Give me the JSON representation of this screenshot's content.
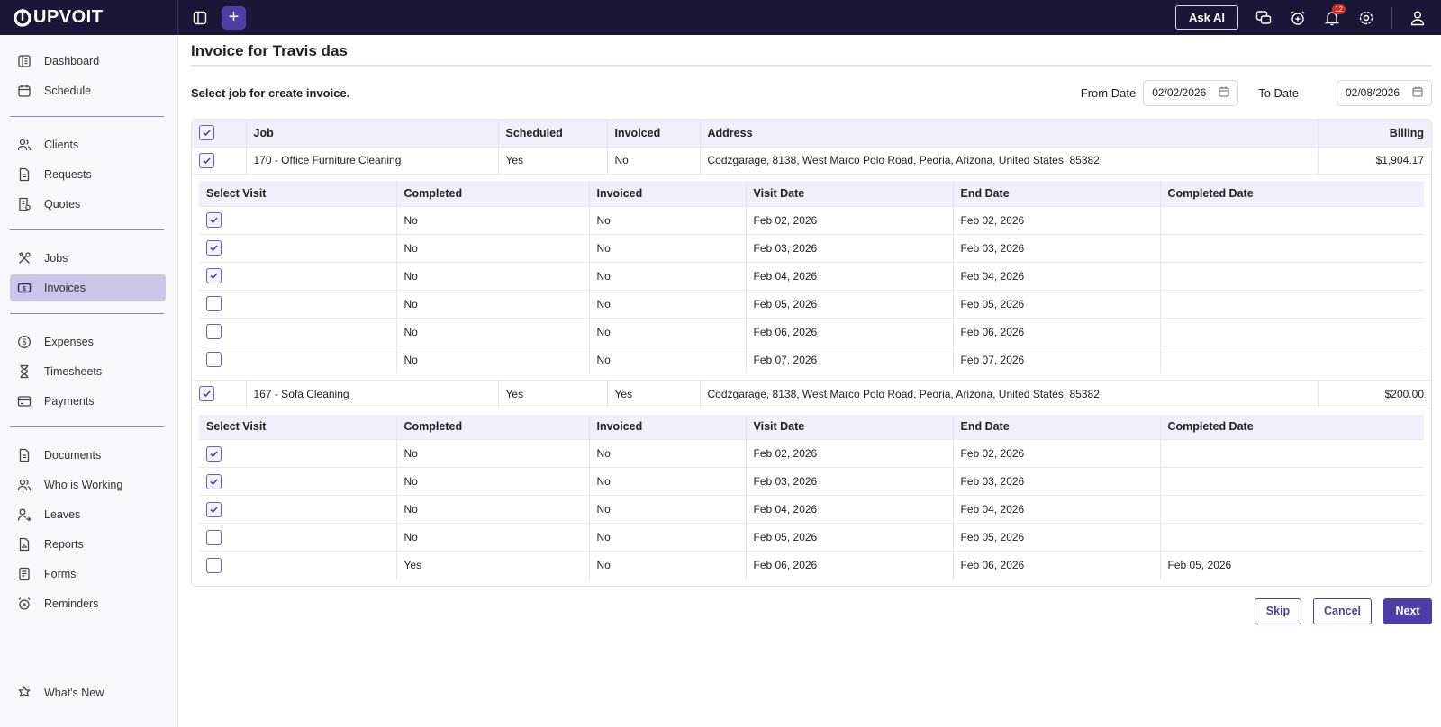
{
  "app": {
    "brand": "UPVOIT"
  },
  "topbar": {
    "ask_ai": "Ask AI",
    "notification_count": "12",
    "icons": [
      "sidebar-toggle-icon",
      "plus-icon",
      "chat-icon",
      "alarm-icon",
      "bell-icon",
      "gear-icon",
      "user-icon"
    ]
  },
  "sidebar": {
    "groups": [
      [
        {
          "label": "Dashboard",
          "icon": "dashboard-icon"
        },
        {
          "label": "Schedule",
          "icon": "calendar-icon"
        }
      ],
      [
        {
          "label": "Clients",
          "icon": "users-icon"
        },
        {
          "label": "Requests",
          "icon": "document-icon"
        },
        {
          "label": "Quotes",
          "icon": "quote-icon"
        }
      ],
      [
        {
          "label": "Jobs",
          "icon": "tools-icon"
        },
        {
          "label": "Invoices",
          "icon": "invoice-icon",
          "active": true
        }
      ],
      [
        {
          "label": "Expenses",
          "icon": "dollar-icon"
        },
        {
          "label": "Timesheets",
          "icon": "hourglass-icon"
        },
        {
          "label": "Payments",
          "icon": "card-icon"
        }
      ],
      [
        {
          "label": "Documents",
          "icon": "file-icon"
        },
        {
          "label": "Who is Working",
          "icon": "team-icon"
        },
        {
          "label": "Leaves",
          "icon": "user-leave-icon"
        },
        {
          "label": "Reports",
          "icon": "report-icon"
        },
        {
          "label": "Forms",
          "icon": "form-icon"
        },
        {
          "label": "Reminders",
          "icon": "alarm-icon"
        }
      ]
    ],
    "footer": {
      "label": "What's New",
      "icon": "star-icon"
    }
  },
  "page": {
    "title": "Invoice for Travis das",
    "subtitle": "Select job for create invoice.",
    "from_label": "From Date",
    "from_value": "02/02/2026",
    "to_label": "To Date",
    "to_value": "02/08/2026"
  },
  "job_headers": [
    "Job",
    "Scheduled",
    "Invoiced",
    "Address",
    "Billing"
  ],
  "visit_headers": [
    "Select Visit",
    "Completed",
    "Invoiced",
    "Visit Date",
    "End Date",
    "Completed Date"
  ],
  "jobs": [
    {
      "checked": true,
      "job": "170 - Office Furniture Cleaning",
      "scheduled": "Yes",
      "invoiced": "No",
      "address": "Codzgarage, 8138, West Marco Polo Road, Peoria, Arizona, United States, 85382",
      "billing": "$1,904.17",
      "visits": [
        {
          "checked": true,
          "completed": "No",
          "invoiced": "No",
          "visit_date": "Feb 02, 2026",
          "end_date": "Feb 02, 2026",
          "completed_date": ""
        },
        {
          "checked": true,
          "completed": "No",
          "invoiced": "No",
          "visit_date": "Feb 03, 2026",
          "end_date": "Feb 03, 2026",
          "completed_date": ""
        },
        {
          "checked": true,
          "completed": "No",
          "invoiced": "No",
          "visit_date": "Feb 04, 2026",
          "end_date": "Feb 04, 2026",
          "completed_date": ""
        },
        {
          "checked": false,
          "completed": "No",
          "invoiced": "No",
          "visit_date": "Feb 05, 2026",
          "end_date": "Feb 05, 2026",
          "completed_date": ""
        },
        {
          "checked": false,
          "completed": "No",
          "invoiced": "No",
          "visit_date": "Feb 06, 2026",
          "end_date": "Feb 06, 2026",
          "completed_date": ""
        },
        {
          "checked": false,
          "completed": "No",
          "invoiced": "No",
          "visit_date": "Feb 07, 2026",
          "end_date": "Feb 07, 2026",
          "completed_date": ""
        }
      ]
    },
    {
      "checked": true,
      "job": "167 - Sofa Cleaning",
      "scheduled": "Yes",
      "invoiced": "Yes",
      "address": "Codzgarage, 8138, West Marco Polo Road, Peoria, Arizona, United States, 85382",
      "billing": "$200.00",
      "visits": [
        {
          "checked": true,
          "completed": "No",
          "invoiced": "No",
          "visit_date": "Feb 02, 2026",
          "end_date": "Feb 02, 2026",
          "completed_date": ""
        },
        {
          "checked": true,
          "completed": "No",
          "invoiced": "No",
          "visit_date": "Feb 03, 2026",
          "end_date": "Feb 03, 2026",
          "completed_date": ""
        },
        {
          "checked": true,
          "completed": "No",
          "invoiced": "No",
          "visit_date": "Feb 04, 2026",
          "end_date": "Feb 04, 2026",
          "completed_date": ""
        },
        {
          "checked": false,
          "completed": "No",
          "invoiced": "No",
          "visit_date": "Feb 05, 2026",
          "end_date": "Feb 05, 2026",
          "completed_date": ""
        },
        {
          "checked": false,
          "completed": "Yes",
          "invoiced": "No",
          "visit_date": "Feb 06, 2026",
          "end_date": "Feb 06, 2026",
          "completed_date": "Feb 05, 2026"
        }
      ]
    }
  ],
  "actions": {
    "skip": "Skip",
    "cancel": "Cancel",
    "next": "Next"
  },
  "colors": {
    "topbar": "#1b1635",
    "accent": "#4e3fa6",
    "active_nav": "#cbc6e8",
    "header_bg": "#f0effa",
    "badge": "#e42222"
  }
}
